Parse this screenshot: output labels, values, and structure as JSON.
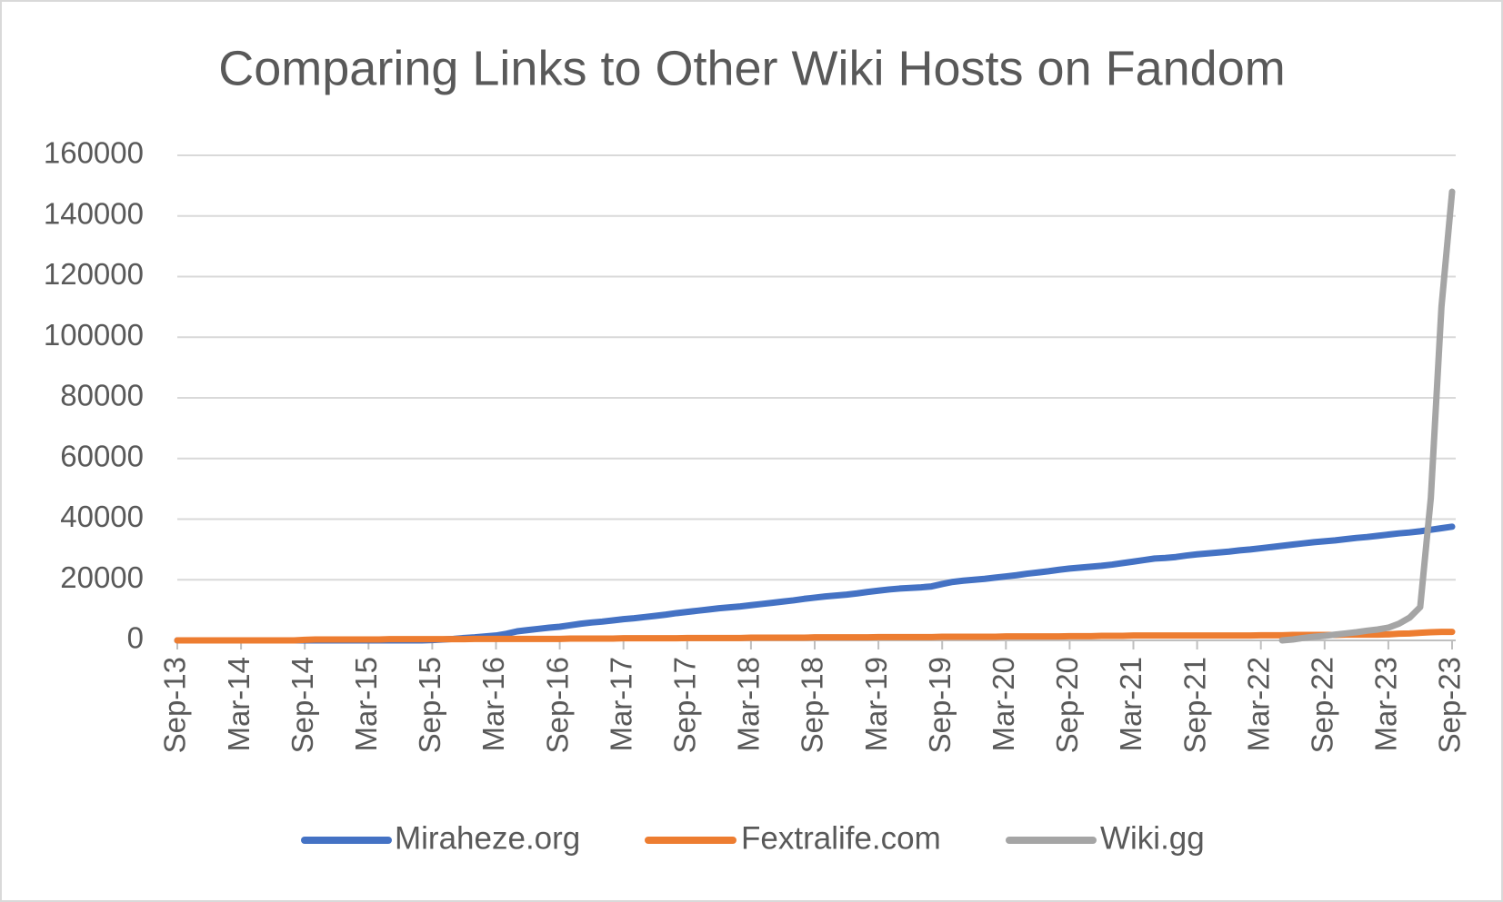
{
  "chart_data": {
    "type": "line",
    "title": "Comparing Links to Other Wiki Hosts on Fandom",
    "categories": [
      "Sep-13",
      null,
      null,
      null,
      null,
      null,
      "Mar-14",
      null,
      null,
      null,
      null,
      null,
      "Sep-14",
      null,
      null,
      null,
      null,
      null,
      "Mar-15",
      null,
      null,
      null,
      null,
      null,
      "Sep-15",
      null,
      null,
      null,
      null,
      null,
      "Mar-16",
      null,
      null,
      null,
      null,
      null,
      "Sep-16",
      null,
      null,
      null,
      null,
      null,
      "Mar-17",
      null,
      null,
      null,
      null,
      null,
      "Sep-17",
      null,
      null,
      null,
      null,
      null,
      "Mar-18",
      null,
      null,
      null,
      null,
      null,
      "Sep-18",
      null,
      null,
      null,
      null,
      null,
      "Mar-19",
      null,
      null,
      null,
      null,
      null,
      "Sep-19",
      null,
      null,
      null,
      null,
      null,
      "Mar-20",
      null,
      null,
      null,
      null,
      null,
      "Sep-20",
      null,
      null,
      null,
      null,
      null,
      "Mar-21",
      null,
      null,
      null,
      null,
      null,
      "Sep-21",
      null,
      null,
      null,
      null,
      null,
      "Mar-22",
      null,
      null,
      null,
      null,
      null,
      "Sep-22",
      null,
      null,
      null,
      null,
      null,
      "Mar-23",
      null,
      null,
      null,
      null,
      null,
      "Sep-23"
    ],
    "series": [
      {
        "name": "Miraheze.org",
        "color": "#4472C4",
        "values": [
          0,
          0,
          0,
          0,
          0,
          0,
          0,
          0,
          0,
          0,
          0,
          0,
          0,
          0,
          0,
          0,
          0,
          0,
          0,
          0,
          0,
          0,
          0,
          0,
          100,
          300,
          500,
          800,
          1000,
          1300,
          1600,
          2200,
          3000,
          3400,
          3800,
          4200,
          4500,
          5000,
          5500,
          5900,
          6200,
          6600,
          7000,
          7300,
          7700,
          8100,
          8500,
          9000,
          9400,
          9800,
          10200,
          10600,
          10900,
          11200,
          11600,
          12000,
          12400,
          12800,
          13200,
          13700,
          14100,
          14500,
          14800,
          15100,
          15500,
          16000,
          16400,
          16800,
          17100,
          17300,
          17500,
          17800,
          18600,
          19300,
          19700,
          20000,
          20300,
          20700,
          21100,
          21500,
          22000,
          22400,
          22800,
          23300,
          23700,
          24000,
          24300,
          24600,
          25000,
          25500,
          26000,
          26500,
          27000,
          27200,
          27500,
          28000,
          28400,
          28700,
          29000,
          29300,
          29700,
          30000,
          30400,
          30800,
          31200,
          31600,
          32000,
          32400,
          32700,
          33000,
          33400,
          33800,
          34100,
          34500,
          34900,
          35300,
          35600,
          36000,
          36500,
          37000,
          37500
        ]
      },
      {
        "name": "Fextralife.com",
        "color": "#ED7D31",
        "values": [
          0,
          0,
          0,
          0,
          0,
          0,
          0,
          0,
          0,
          0,
          0,
          0,
          200,
          300,
          300,
          300,
          300,
          300,
          300,
          300,
          400,
          400,
          400,
          400,
          400,
          400,
          400,
          400,
          500,
          500,
          500,
          500,
          500,
          500,
          500,
          500,
          500,
          600,
          600,
          600,
          600,
          600,
          700,
          700,
          700,
          700,
          700,
          700,
          800,
          800,
          800,
          800,
          800,
          800,
          900,
          900,
          900,
          900,
          900,
          900,
          1000,
          1000,
          1000,
          1000,
          1000,
          1000,
          1100,
          1100,
          1100,
          1100,
          1100,
          1100,
          1200,
          1200,
          1200,
          1200,
          1200,
          1200,
          1300,
          1300,
          1300,
          1300,
          1300,
          1300,
          1400,
          1400,
          1400,
          1500,
          1500,
          1500,
          1600,
          1600,
          1600,
          1600,
          1600,
          1600,
          1600,
          1600,
          1600,
          1600,
          1600,
          1600,
          1700,
          1700,
          1700,
          1800,
          1800,
          1800,
          1800,
          1800,
          1900,
          1900,
          1900,
          1900,
          2000,
          2200,
          2300,
          2500,
          2700,
          2800,
          2800
        ]
      },
      {
        "name": "Wiki.gg",
        "color": "#A5A5A5",
        "values": [
          null,
          null,
          null,
          null,
          null,
          null,
          null,
          null,
          null,
          null,
          null,
          null,
          null,
          null,
          null,
          null,
          null,
          null,
          null,
          null,
          null,
          null,
          null,
          null,
          null,
          null,
          null,
          null,
          null,
          null,
          null,
          null,
          null,
          null,
          null,
          null,
          null,
          null,
          null,
          null,
          null,
          null,
          null,
          null,
          null,
          null,
          null,
          null,
          null,
          null,
          null,
          null,
          null,
          null,
          null,
          null,
          null,
          null,
          null,
          null,
          null,
          null,
          null,
          null,
          null,
          null,
          null,
          null,
          null,
          null,
          null,
          null,
          null,
          null,
          null,
          null,
          null,
          null,
          null,
          null,
          null,
          null,
          null,
          null,
          null,
          null,
          null,
          null,
          null,
          null,
          null,
          null,
          null,
          null,
          null,
          null,
          null,
          null,
          null,
          null,
          null,
          null,
          null,
          null,
          0,
          300,
          800,
          1200,
          1500,
          1900,
          2300,
          2700,
          3200,
          3600,
          4200,
          5500,
          7500,
          11000,
          47000,
          110000,
          148000
        ]
      }
    ],
    "ylim": [
      0,
      160000
    ],
    "yticks": [
      0,
      20000,
      40000,
      60000,
      80000,
      100000,
      120000,
      140000,
      160000
    ],
    "grid": true,
    "legend": "bottom"
  }
}
